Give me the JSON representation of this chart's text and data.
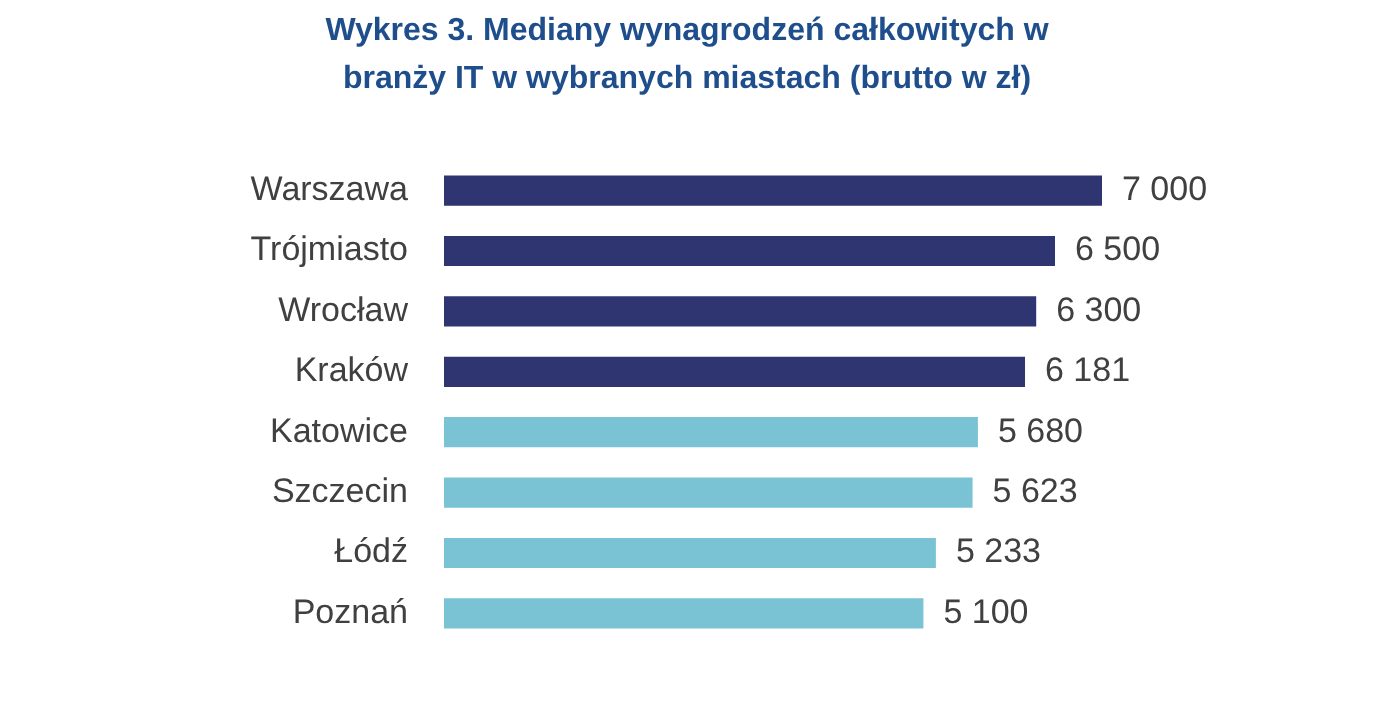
{
  "chart_data": {
    "type": "bar",
    "orientation": "horizontal",
    "title": "Wykres 3. Mediany wynagrodzeń całkowitych w branży IT w wybranych miastach (brutto w zł)",
    "categories": [
      "Warszawa",
      "Trójmiasto",
      "Wrocław",
      "Kraków",
      "Katowice",
      "Szczecin",
      "Łódź",
      "Poznań"
    ],
    "values": [
      7000,
      6500,
      6300,
      6181,
      5680,
      5623,
      5233,
      5100
    ],
    "colors": [
      "#2e3570",
      "#2e3570",
      "#2e3570",
      "#2e3570",
      "#79c3d5",
      "#79c3d5",
      "#79c3d5",
      "#79c3d5"
    ],
    "value_labels": [
      "7 000",
      "6 500",
      "6 300",
      "6 181",
      "5 680",
      "5 623",
      "5 233",
      "5 100"
    ]
  }
}
